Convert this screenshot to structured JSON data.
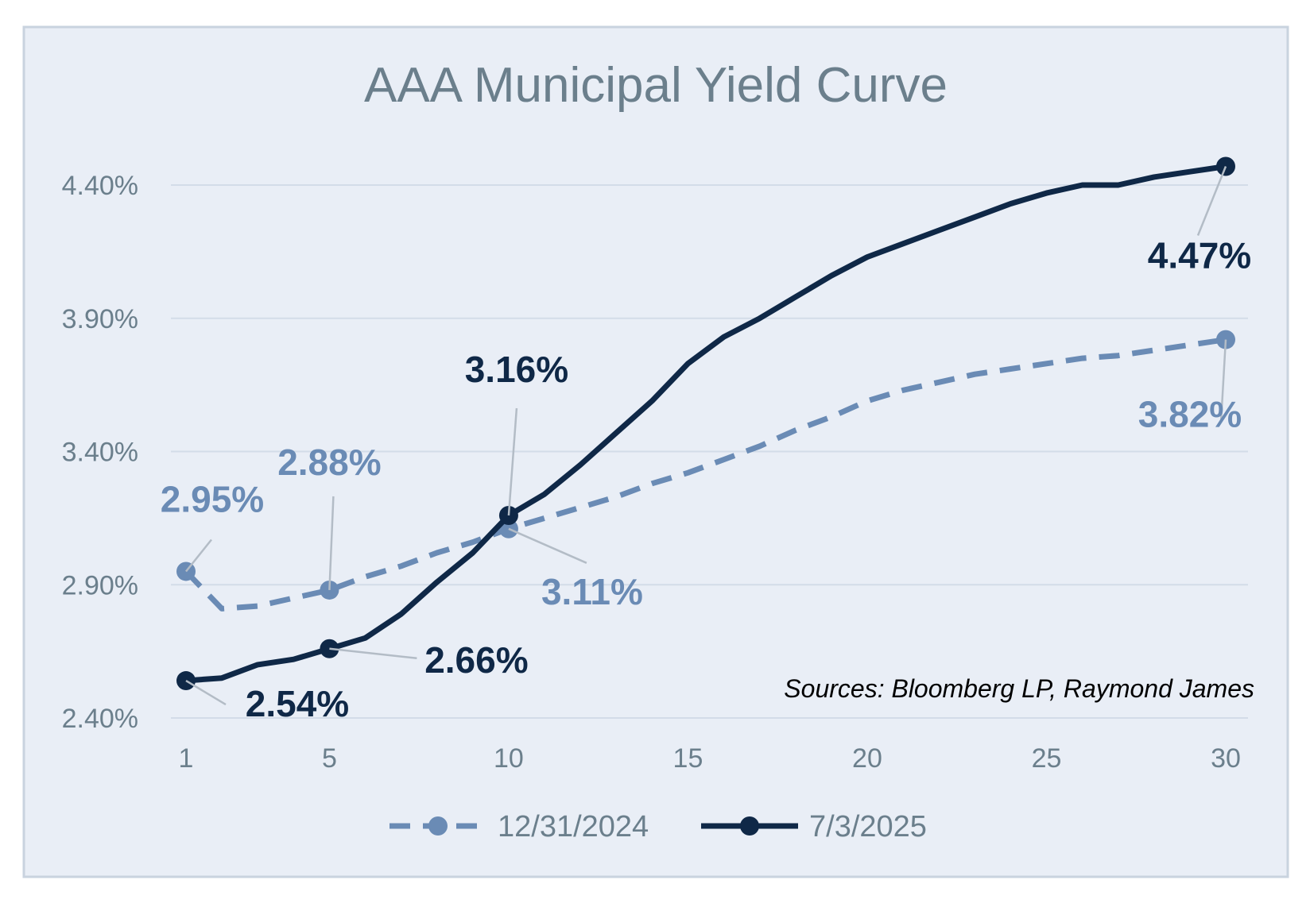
{
  "chart_data": {
    "type": "line",
    "title": "AAA Municipal Yield Curve",
    "xlabel": "",
    "ylabel": "",
    "xlim": [
      1,
      30
    ],
    "ylim": [
      2.4,
      4.48
    ],
    "x_ticks": [
      1,
      5,
      10,
      15,
      20,
      25,
      30
    ],
    "y_ticks": [
      2.4,
      2.9,
      3.4,
      3.9,
      4.4
    ],
    "y_tick_labels": [
      "2.40%",
      "2.90%",
      "3.40%",
      "3.90%",
      "4.40%"
    ],
    "grid": "horizontal",
    "legend_position": "bottom",
    "source_note": "Sources: Bloomberg LP, Raymond James",
    "x": [
      1,
      2,
      3,
      4,
      5,
      6,
      7,
      8,
      9,
      10,
      11,
      12,
      13,
      14,
      15,
      16,
      17,
      18,
      19,
      20,
      21,
      22,
      23,
      24,
      25,
      26,
      27,
      28,
      29,
      30
    ],
    "series": [
      {
        "name": "12/31/2024",
        "style": "dashed",
        "color": "#6a8bb5",
        "values": [
          2.95,
          2.81,
          2.82,
          2.85,
          2.88,
          2.93,
          2.97,
          3.02,
          3.06,
          3.11,
          3.15,
          3.19,
          3.23,
          3.28,
          3.32,
          3.37,
          3.42,
          3.48,
          3.53,
          3.59,
          3.63,
          3.66,
          3.69,
          3.71,
          3.73,
          3.75,
          3.76,
          3.78,
          3.8,
          3.82
        ],
        "markers_at": [
          1,
          5,
          10,
          30
        ],
        "data_labels": [
          {
            "x": 1,
            "text": "2.95%"
          },
          {
            "x": 5,
            "text": "2.88%"
          },
          {
            "x": 10,
            "text": "3.11%"
          },
          {
            "x": 30,
            "text": "3.82%"
          }
        ]
      },
      {
        "name": "7/3/2025",
        "style": "solid",
        "color": "#0f2847",
        "values": [
          2.54,
          2.55,
          2.6,
          2.62,
          2.66,
          2.7,
          2.79,
          2.91,
          3.02,
          3.16,
          3.24,
          3.35,
          3.47,
          3.59,
          3.73,
          3.83,
          3.9,
          3.98,
          4.06,
          4.13,
          4.18,
          4.23,
          4.28,
          4.33,
          4.37,
          4.4,
          4.4,
          4.43,
          4.45,
          4.47
        ],
        "markers_at": [
          1,
          5,
          10,
          30
        ],
        "data_labels": [
          {
            "x": 1,
            "text": "2.54%"
          },
          {
            "x": 5,
            "text": "2.66%"
          },
          {
            "x": 10,
            "text": "3.16%"
          },
          {
            "x": 30,
            "text": "4.47%"
          }
        ]
      }
    ]
  }
}
